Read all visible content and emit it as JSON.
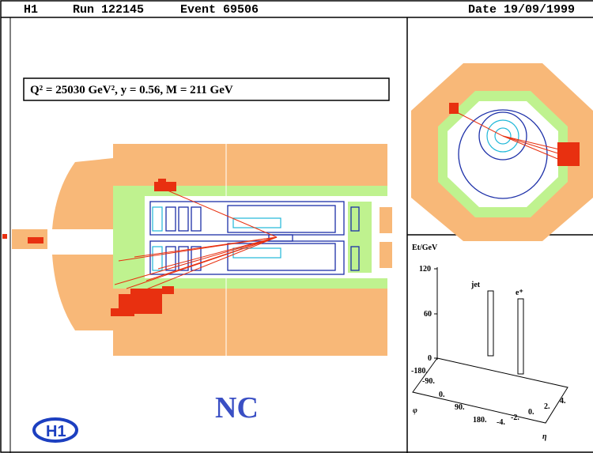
{
  "header": {
    "experiment": "H1",
    "run": "Run 122145",
    "event": "Event 69506",
    "date": "Date 19/09/1999"
  },
  "side_view": {
    "kinematics": "Q² = 25030 GeV²,   y = 0.56,   M = 211 GeV",
    "process": "NC",
    "logo": "H1"
  },
  "lego_plot": {
    "axis_title": "Et/GeV",
    "e_ticks": [
      "120",
      "60",
      "0"
    ],
    "phi_label": "φ",
    "phi_ticks": [
      "-180.",
      "-90.",
      "0.",
      "90.",
      "180."
    ],
    "eta_label": "η",
    "eta_ticks": [
      "-4.",
      "-2.",
      "0.",
      "2.",
      "4."
    ],
    "peaks": [
      "jet",
      "e⁺"
    ]
  }
}
